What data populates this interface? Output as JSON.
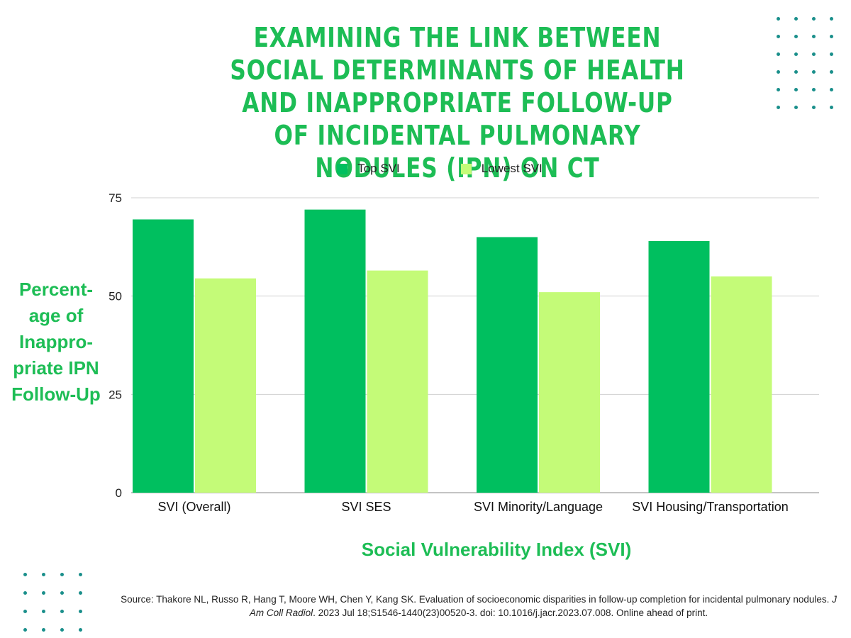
{
  "title": "EXAMINING THE LINK BETWEEN SOCIAL DETERMINANTS OF HEALTH AND INAPPROPRIATE FOLLOW-UP OF INCIDENTAL PULMONARY NODULES (IPN) ON CT",
  "source": {
    "prefix": "Source: Thakore NL, Russo R, Hang T, Moore WH, Chen Y, Kang SK. Evaluation of socioeconomic disparities in follow-up completion for incidental pulmonary nodules.",
    "journal": "J Am Coll Radiol",
    "suffix": ". 2023 Jul 18;S1546-1440(23)00520-3. doi: 10.1016/j.jacr.2023.07.008. Online ahead of print."
  },
  "colors": {
    "top_svi": "#00bf5f",
    "lowest_svi": "#c4fb78",
    "accent_text": "#1dbd55",
    "gridline": "#d0d0d0",
    "dots": "#1a8f8b"
  },
  "chart_data": {
    "type": "bar",
    "title": "EXAMINING THE LINK BETWEEN SOCIAL DETERMINANTS OF HEALTH AND INAPPROPRIATE FOLLOW-UP OF INCIDENTAL PULMONARY NODULES (IPN) ON CT",
    "xlabel": "Social Vulnerability Index  (SVI)",
    "ylabel": "Percent-age of Inappro-priate IPN Follow-Up",
    "categories": [
      "SVI (Overall)",
      "SVI SES",
      "SVI Minority/Language",
      "SVI Housing/Transportation"
    ],
    "series": [
      {
        "name": "Top SVI",
        "values": [
          69.5,
          72,
          65,
          64
        ]
      },
      {
        "name": "Lowest SVI",
        "values": [
          54.5,
          56.5,
          51,
          55
        ]
      }
    ],
    "ylim": [
      0,
      75
    ],
    "yticks": [
      0,
      25,
      50,
      75
    ],
    "grid": true,
    "legend": "top-center"
  }
}
